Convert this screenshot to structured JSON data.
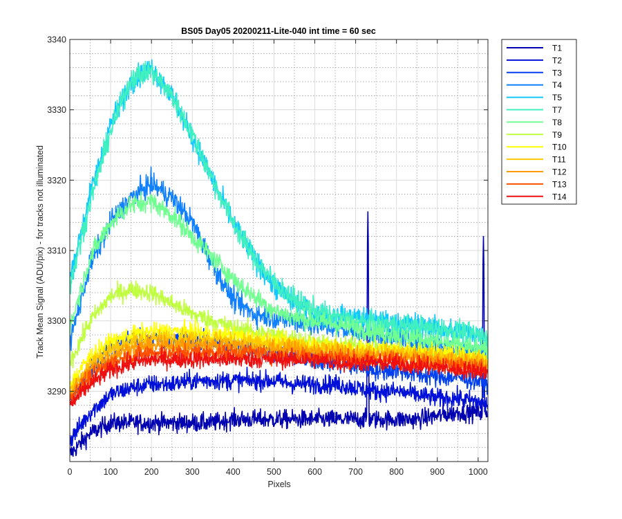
{
  "chart_data": {
    "type": "line",
    "title": "BS05 Day05 20200211-Lite-040 int time = 60 sec",
    "xlabel": "Pixels",
    "ylabel": "Track Mean Signal (ADU/pix) - for tracks not illuminated",
    "xlim": [
      0,
      1024
    ],
    "ylim": [
      3280,
      3340
    ],
    "x_ticks": [
      0,
      100,
      200,
      300,
      400,
      500,
      600,
      700,
      800,
      900,
      1000
    ],
    "x_tick_labels": [
      "0",
      "100",
      "200",
      "300",
      "400",
      "500",
      "600",
      "700",
      "800",
      "900",
      "1000"
    ],
    "y_ticks": [
      3290,
      3300,
      3310,
      3320,
      3330,
      3340
    ],
    "y_tick_labels": [
      "3290",
      "3300",
      "3310",
      "3320",
      "3330",
      "3340"
    ],
    "grid": true,
    "minor_grid": true,
    "legend_position": "outside-right-top",
    "x": [
      0,
      50,
      100,
      150,
      200,
      250,
      300,
      350,
      400,
      450,
      500,
      550,
      600,
      650,
      700,
      750,
      800,
      850,
      900,
      950,
      1000,
      1024
    ],
    "series": [
      {
        "name": "T1",
        "color": "#0000b0",
        "noise": 1.3,
        "values": [
          3281,
          3284,
          3285.5,
          3285.5,
          3285.5,
          3285.5,
          3285.5,
          3285.5,
          3286,
          3286,
          3286,
          3286,
          3286,
          3286,
          3286,
          3286,
          3286,
          3286,
          3286.5,
          3287,
          3287,
          3287
        ],
        "spikes": [
          {
            "x": 730,
            "y": 3315.5
          },
          {
            "x": 1013,
            "y": 3312
          }
        ]
      },
      {
        "name": "T2",
        "color": "#0010d8",
        "noise": 1.3,
        "values": [
          3283,
          3287,
          3289.5,
          3290.5,
          3291,
          3291,
          3291.5,
          3291.5,
          3291.5,
          3291.5,
          3291.5,
          3291,
          3291,
          3291,
          3290.5,
          3290,
          3290,
          3289.5,
          3289,
          3289,
          3288.5,
          3288
        ]
      },
      {
        "name": "T3",
        "color": "#0040f0",
        "noise": 1.4,
        "values": [
          3289,
          3293,
          3296,
          3297.5,
          3297.5,
          3297.5,
          3297,
          3297,
          3296.5,
          3296,
          3295.5,
          3295,
          3294.5,
          3294,
          3293.5,
          3293,
          3293,
          3292.5,
          3292,
          3292,
          3291.5,
          3291
        ]
      },
      {
        "name": "T4",
        "color": "#1080ff",
        "noise": 1.6,
        "values": [
          3297,
          3308,
          3314,
          3317.5,
          3319.5,
          3317.5,
          3314,
          3308,
          3303,
          3301,
          3300.5,
          3300,
          3299.5,
          3299,
          3298.5,
          3298,
          3297.5,
          3297,
          3296.5,
          3296,
          3295.5,
          3295
        ]
      },
      {
        "name": "T5",
        "color": "#10c8ff",
        "noise": 1.6,
        "values": [
          3306,
          3318,
          3328,
          3334,
          3336,
          3332,
          3326,
          3320,
          3314,
          3309,
          3305,
          3302.5,
          3301,
          3300.5,
          3300.5,
          3300,
          3299.5,
          3299.5,
          3299,
          3298.5,
          3298,
          3297.5
        ]
      },
      {
        "name": "T7",
        "color": "#40f0c0",
        "noise": 1.6,
        "values": [
          3305,
          3317,
          3327,
          3334.5,
          3335.5,
          3332,
          3326.5,
          3320,
          3314,
          3309,
          3305.5,
          3303,
          3301.5,
          3300.5,
          3300,
          3299.5,
          3299.5,
          3299,
          3299,
          3298.5,
          3298,
          3297.5
        ]
      },
      {
        "name": "T8",
        "color": "#70ff90",
        "noise": 1.4,
        "values": [
          3299,
          3309,
          3314,
          3316.5,
          3317,
          3315,
          3312,
          3309,
          3306,
          3303.5,
          3301.5,
          3300.5,
          3300,
          3299.5,
          3299,
          3298.5,
          3298,
          3297.5,
          3297,
          3296.5,
          3296,
          3295.5
        ]
      },
      {
        "name": "T9",
        "color": "#c0ff40",
        "noise": 1.3,
        "values": [
          3294,
          3300,
          3303.5,
          3304.5,
          3304,
          3302.5,
          3301,
          3300,
          3299,
          3298.5,
          3298,
          3297.5,
          3297,
          3296.5,
          3296.5,
          3296,
          3296,
          3295.5,
          3295,
          3295,
          3294.5,
          3294
        ]
      },
      {
        "name": "T10",
        "color": "#ffff00",
        "noise": 1.2,
        "values": [
          3291,
          3295,
          3297,
          3298,
          3298.5,
          3298.5,
          3298.5,
          3298,
          3298,
          3297.5,
          3297,
          3297,
          3296.5,
          3296.5,
          3296,
          3296,
          3296,
          3295.5,
          3295.5,
          3295,
          3295,
          3294.5
        ]
      },
      {
        "name": "T11",
        "color": "#ffc800",
        "noise": 1.2,
        "values": [
          3290,
          3294,
          3296,
          3297,
          3297.5,
          3297.5,
          3297.5,
          3297.5,
          3297,
          3297,
          3296.5,
          3296.5,
          3296,
          3296,
          3295.5,
          3295.5,
          3295.5,
          3295,
          3295,
          3294.5,
          3294.5,
          3294
        ]
      },
      {
        "name": "T12",
        "color": "#ff9a00",
        "noise": 1.2,
        "values": [
          3289.5,
          3293,
          3295,
          3296,
          3296.5,
          3296.5,
          3296.5,
          3296.5,
          3296.5,
          3296,
          3296,
          3296,
          3295.5,
          3295.5,
          3295,
          3295,
          3295,
          3294.5,
          3294.5,
          3294,
          3294,
          3293.5
        ]
      },
      {
        "name": "T13",
        "color": "#ff5000",
        "noise": 1.2,
        "values": [
          3289,
          3292,
          3294,
          3295,
          3295.5,
          3295.5,
          3295.5,
          3295.5,
          3295.5,
          3295.5,
          3295,
          3295,
          3295,
          3295,
          3294.5,
          3294.5,
          3294.5,
          3294,
          3294,
          3293.5,
          3293.5,
          3293
        ]
      },
      {
        "name": "T14",
        "color": "#ee1010",
        "noise": 1.2,
        "values": [
          3288,
          3291,
          3293,
          3294,
          3294.5,
          3294.5,
          3294.5,
          3294.5,
          3294.5,
          3294.5,
          3294.5,
          3294.5,
          3294.5,
          3294,
          3294,
          3294,
          3294,
          3293.5,
          3293.5,
          3293,
          3293,
          3292.5
        ]
      }
    ]
  }
}
